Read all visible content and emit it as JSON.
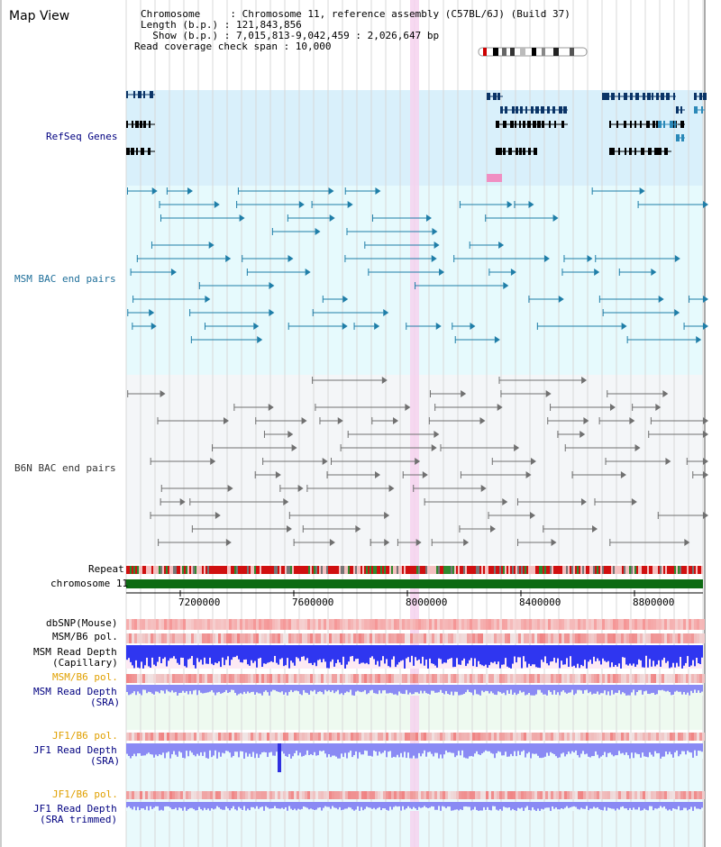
{
  "header": {
    "title": "Map View",
    "lines": [
      "Chromosome     : Chromosome 11, reference assembly (C57BL/6J) (Build 37)",
      "Length (b.p.) : 121,843,856",
      "  Show (b.p.) : 7,015,813-9,042,459 : 2,026,647 bp",
      "Read coverage check span : 10,000"
    ]
  },
  "tracks": {
    "refseq": "RefSeq Genes",
    "msm_bac": "MSM BAC end pairs",
    "b6n_bac": "B6N BAC end pairs",
    "repeat": "Repeat",
    "chromosome": "chromosome 11",
    "dbsnp": "dbSNP(Mouse)",
    "msm_b6_pol_1": "MSM/B6 pol.",
    "msm_read_depth_cap_1": "MSM Read Depth",
    "msm_read_depth_cap_2": "(Capillary)",
    "msm_b6_pol_2": "MSM/B6 pol.",
    "msm_read_depth_sra_1": "MSM Read Depth",
    "msm_read_depth_sra_2": "(SRA)",
    "jf1_b6_pol_1": "JF1/B6 pol.",
    "jf1_read_depth_sra_1": "JF1 Read Depth",
    "jf1_read_depth_sra_2": "(SRA)",
    "jf1_b6_pol_2": "JF1/B6 pol.",
    "jf1_read_depth_trim_1": "JF1 Read Depth",
    "jf1_read_depth_trim_2": "(SRA trimmed)"
  },
  "axis": {
    "ticks": [
      "7200000",
      "7600000",
      "8000000",
      "8400000",
      "8800000"
    ]
  },
  "colors": {
    "refseq_bg": "#d9f0fb",
    "bac_bg": "#e6fafd",
    "b6n_bg": "#f4f6f8",
    "highlight": "#f6d2ee",
    "gene_dark": "#0a3467",
    "gene_teal": "#2b89b8",
    "bac_line": "#1f7ea8",
    "b6n_line": "#707070",
    "chrom_green": "#0d6b12",
    "snp_red": "#f3888b",
    "depth_blue": "#2f36f0",
    "sra_blue": "#8a8af4",
    "pol_label": "#e0a000",
    "blue_label": "#000080"
  }
}
